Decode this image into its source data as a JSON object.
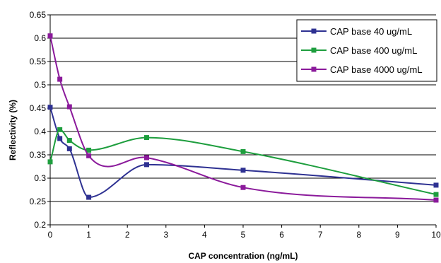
{
  "chart_data": {
    "type": "line",
    "xlabel": "CAP concentration (ng/mL)",
    "ylabel": "Reflectivity (%)",
    "xlim": [
      0,
      10
    ],
    "ylim": [
      0.2,
      0.65
    ],
    "xticks": [
      0,
      1,
      2,
      3,
      4,
      5,
      6,
      7,
      8,
      9,
      10
    ],
    "yticks": [
      0.2,
      0.25,
      0.3,
      0.35,
      0.4,
      0.45,
      0.5,
      0.55,
      0.6,
      0.65
    ],
    "xtick_labels": [
      "0",
      "1",
      "2",
      "3",
      "4",
      "5",
      "6",
      "7",
      "8",
      "9",
      "10"
    ],
    "ytick_labels": [
      "0.2",
      "0.25",
      "0.3",
      "0.35",
      "0.4",
      "0.45",
      "0.5",
      "0.55",
      "0.6",
      "0.65"
    ],
    "grid": "horizontal",
    "legend_position": "top-right",
    "series": [
      {
        "name": "CAP base 40 ug/mL",
        "color": "#2e3192",
        "x": [
          0,
          0.25,
          0.5,
          1,
          2.5,
          5,
          10
        ],
        "y": [
          0.452,
          0.385,
          0.363,
          0.259,
          0.329,
          0.317,
          0.285
        ]
      },
      {
        "name": "CAP base  400 ug/mL",
        "color": "#1e9e3e",
        "x": [
          0,
          0.25,
          0.5,
          1,
          2.5,
          5,
          10
        ],
        "y": [
          0.335,
          0.404,
          0.381,
          0.36,
          0.387,
          0.357,
          0.265
        ]
      },
      {
        "name": "CAP base 4000 ug/mL",
        "color": "#8b1a9b",
        "x": [
          0,
          0.25,
          0.5,
          1,
          2.5,
          5,
          10
        ],
        "y": [
          0.605,
          0.512,
          0.453,
          0.348,
          0.344,
          0.28,
          0.253
        ]
      }
    ]
  }
}
